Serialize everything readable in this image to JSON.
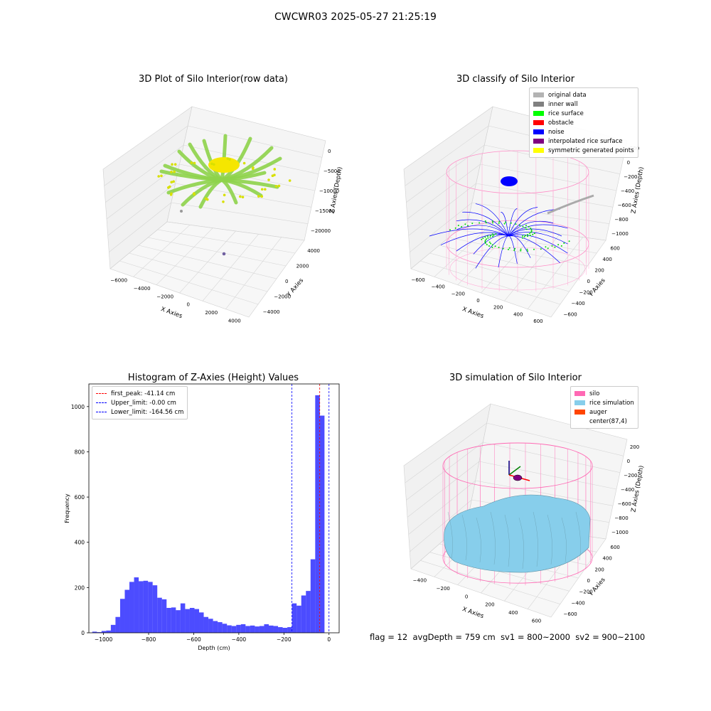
{
  "figure": {
    "suptitle": "CWCWR03 2025-05-27 21:25:19"
  },
  "panels": {
    "raw": {
      "title": "3D Plot of Silo Interior(row data)",
      "xlabel": "X Axies",
      "ylabel": "Y Axies",
      "zlabel": "Z Axies (Depth)",
      "xticks": [
        "−6000",
        "−4000",
        "−2000",
        "0",
        "2000",
        "4000"
      ],
      "yticks": [
        "−4000",
        "−2000",
        "0",
        "2000",
        "4000"
      ],
      "zticks": [
        "0",
        "−5000",
        "−10000",
        "−15000",
        "−20000"
      ]
    },
    "classify": {
      "title": "3D classify of Silo Interior",
      "xlabel": "X Axies",
      "ylabel": "Y Axies",
      "zlabel": "Z Axies (Depth)",
      "xticks": [
        "−600",
        "−400",
        "−200",
        "0",
        "200",
        "400",
        "600"
      ],
      "yticks": [
        "−600",
        "−400",
        "−200",
        "0",
        "200",
        "400",
        "600"
      ],
      "zticks": [
        "200",
        "0",
        "−200",
        "−400",
        "−600",
        "−800",
        "−1000"
      ],
      "legend": [
        {
          "label": "original data",
          "color": "#b3b3b3"
        },
        {
          "label": "inner wall",
          "color": "#808080"
        },
        {
          "label": "rice surface",
          "color": "#00ff00"
        },
        {
          "label": "obstacle",
          "color": "#ff0000"
        },
        {
          "label": "noise",
          "color": "#0000ff"
        },
        {
          "label": "interpolated rice surface",
          "color": "#800080"
        },
        {
          "label": "symmetric generated points",
          "color": "#ffff00"
        }
      ]
    },
    "simulation": {
      "title": "3D simulation of Silo Interior",
      "xlabel": "X Axies",
      "ylabel": "Y Axies",
      "zlabel": "Z Axies (Depth)",
      "xticks": [
        "−400",
        "−200",
        "0",
        "200",
        "400",
        "600"
      ],
      "yticks": [
        "−600",
        "−400",
        "−200",
        "0",
        "200",
        "400",
        "600"
      ],
      "zticks": [
        "200",
        "0",
        "−200",
        "−400",
        "−600",
        "−800",
        "−1000"
      ],
      "legend": [
        {
          "label": "silo",
          "color": "#ff69b4"
        },
        {
          "label": "rice simulation",
          "color": "#87ceeb"
        },
        {
          "label": "auger",
          "color": "#ff4500"
        },
        {
          "label": "center(87,4)",
          "color": ""
        }
      ]
    }
  },
  "status": {
    "flag": "flag = 12",
    "avg": "avgDepth = 759 cm",
    "sv1": "sv1 = 800~2000",
    "sv2": "sv2 = 900~2100"
  },
  "chart_data": {
    "type": "bar",
    "title": "Histogram of Z-Axies (Height) Values",
    "xlabel": "Depth (cm)",
    "ylabel": "Frequency",
    "xlim": [
      -1065,
      45
    ],
    "ylim": [
      0,
      1100
    ],
    "xticks": [
      -1000,
      -800,
      -600,
      -400,
      -200,
      0
    ],
    "yticks": [
      0,
      200,
      400,
      600,
      800,
      1000
    ],
    "bin_width": 20.6,
    "bins_start": [
      -1050,
      -1029.4,
      -1008.8,
      -988.2,
      -967.6,
      -947,
      -926.4,
      -905.8,
      -885.2,
      -864.6,
      -844,
      -823.4,
      -802.8,
      -782.2,
      -761.6,
      -741,
      -720.4,
      -699.8,
      -679.2,
      -658.6,
      -638,
      -617.4,
      -596.8,
      -576.2,
      -555.6,
      -535,
      -514.4,
      -493.8,
      -473.2,
      -452.6,
      -432,
      -411.4,
      -390.8,
      -370.2,
      -349.6,
      -329,
      -308.4,
      -287.8,
      -267.2,
      -246.6,
      -226,
      -205.4,
      -184.8,
      -164.2,
      -143.6,
      -123,
      -102.4,
      -81.8,
      -61.2,
      -40.6,
      -20
    ],
    "counts": [
      5,
      3,
      8,
      10,
      35,
      70,
      150,
      190,
      225,
      245,
      228,
      230,
      225,
      210,
      155,
      148,
      110,
      112,
      100,
      130,
      105,
      110,
      105,
      90,
      70,
      62,
      52,
      47,
      40,
      33,
      30,
      35,
      38,
      30,
      32,
      28,
      30,
      38,
      32,
      30,
      25,
      22,
      25,
      130,
      120,
      165,
      185,
      325,
      1050,
      960,
      0
    ],
    "bar_color": "#0000ff",
    "bar_alpha": 0.7,
    "lines": [
      {
        "label": "first_peak: -41.14 cm",
        "x": -41.14,
        "color": "#ff0000"
      },
      {
        "label": "Upper_limit: -0.00 cm",
        "x": -0.0,
        "color": "#0000ff"
      },
      {
        "label": "Lower_limit: -164.56 cm",
        "x": -164.56,
        "color": "#0000ff"
      }
    ],
    "legend_position": "upper left"
  }
}
